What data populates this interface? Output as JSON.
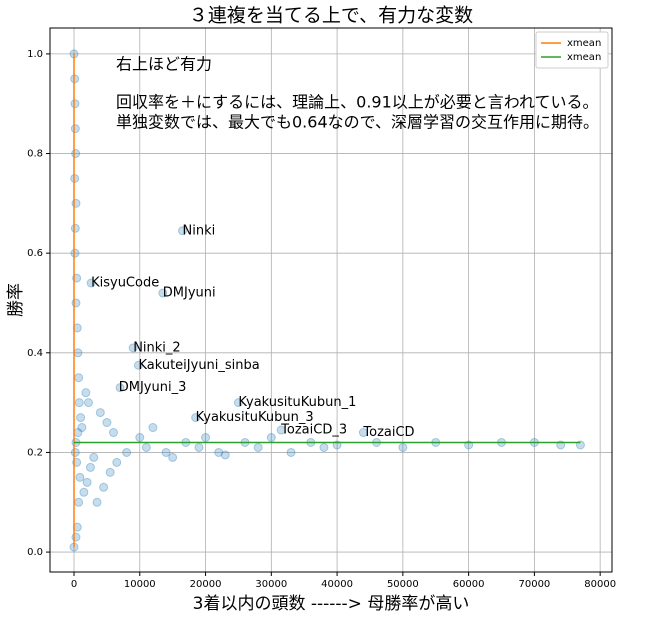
{
  "chart_data": {
    "type": "scatter",
    "title": "３連複を当てる上で、有力な変数",
    "x_label": "3着以内の頭数 ------> 母勝率が高い",
    "y_label": "勝率",
    "color": "#1f77b4",
    "x": [
      0,
      0,
      100,
      150,
      200,
      250,
      100,
      300,
      200,
      150,
      400,
      300,
      500,
      600,
      700,
      800,
      1000,
      1200,
      900,
      700,
      500,
      300,
      1500,
      2000,
      2500,
      3000,
      1800,
      2200,
      2600,
      4000,
      5000,
      6000,
      7000,
      3500,
      4500,
      5500,
      6500,
      8000,
      9000,
      9800,
      10000,
      11000,
      12000,
      13500,
      14000,
      15000,
      16500,
      17000,
      18500,
      19000,
      20000,
      22000,
      23000,
      25000,
      26000,
      28000,
      30000,
      31500,
      33000,
      36000,
      38000,
      40000,
      44000,
      46000,
      50000,
      55000,
      60000,
      65000,
      70000,
      74000,
      77000,
      200,
      300,
      400,
      600
    ],
    "y": [
      1.0,
      0.01,
      0.95,
      0.9,
      0.85,
      0.8,
      0.75,
      0.7,
      0.65,
      0.6,
      0.55,
      0.5,
      0.45,
      0.4,
      0.35,
      0.3,
      0.27,
      0.25,
      0.15,
      0.1,
      0.05,
      0.03,
      0.12,
      0.14,
      0.17,
      0.19,
      0.32,
      0.3,
      0.54,
      0.28,
      0.26,
      0.24,
      0.33,
      0.1,
      0.13,
      0.16,
      0.18,
      0.2,
      0.41,
      0.375,
      0.23,
      0.21,
      0.25,
      0.52,
      0.2,
      0.19,
      0.645,
      0.22,
      0.27,
      0.21,
      0.23,
      0.2,
      0.195,
      0.3,
      0.22,
      0.21,
      0.23,
      0.245,
      0.2,
      0.22,
      0.21,
      0.215,
      0.24,
      0.22,
      0.21,
      0.22,
      0.215,
      0.22,
      0.22,
      0.215,
      0.215,
      0.2,
      0.22,
      0.18,
      0.24
    ],
    "lines": [
      {
        "name": "xmean",
        "color": "#ff7f0e",
        "x": [
          0,
          0
        ],
        "y": [
          0.01,
          1.0
        ]
      },
      {
        "name": "xmean",
        "color": "#2ca02c",
        "x": [
          0,
          77000
        ],
        "y": [
          0.22,
          0.22
        ]
      }
    ],
    "annotations": [
      {
        "text": "Ninki",
        "x": 16500,
        "y": 0.645
      },
      {
        "text": "KisyuCode",
        "x": 2600,
        "y": 0.54
      },
      {
        "text": "DMJyuni",
        "x": 13500,
        "y": 0.52
      },
      {
        "text": "Ninki_2",
        "x": 9000,
        "y": 0.41
      },
      {
        "text": "KakuteiJyuni_sinba",
        "x": 9800,
        "y": 0.375
      },
      {
        "text": "DMJyuni_3",
        "x": 6800,
        "y": 0.33
      },
      {
        "text": "KyakusituKubun_1",
        "x": 25000,
        "y": 0.3
      },
      {
        "text": "KyakusituKubun_3",
        "x": 18500,
        "y": 0.27
      },
      {
        "text": "TozaiCD_3",
        "x": 31500,
        "y": 0.245
      },
      {
        "text": "TozaiCD",
        "x": 44000,
        "y": 0.24
      }
    ],
    "notes": [
      "右上ほど有力",
      "回収率を＋にするには、理論上、0.91以上が必要と言われている。",
      "単独変数では、最大でも0.64なので、深層学習の交互作用に期待。"
    ],
    "xlim": [
      -3650,
      81800
    ],
    "ylim": [
      -0.04,
      1.052
    ],
    "xticks": [
      0,
      10000,
      20000,
      30000,
      40000,
      50000,
      60000,
      70000,
      80000
    ],
    "yticks": [
      {
        "value": 0,
        "label": "0.0"
      },
      {
        "value": 0.2,
        "label": "0.2"
      },
      {
        "value": 0.4,
        "label": "0.4"
      },
      {
        "value": 0.6,
        "label": "0.6"
      },
      {
        "value": 0.8,
        "label": "0.8"
      },
      {
        "value": 1,
        "label": "1.0"
      }
    ],
    "grid": true,
    "legend": "upper right"
  }
}
